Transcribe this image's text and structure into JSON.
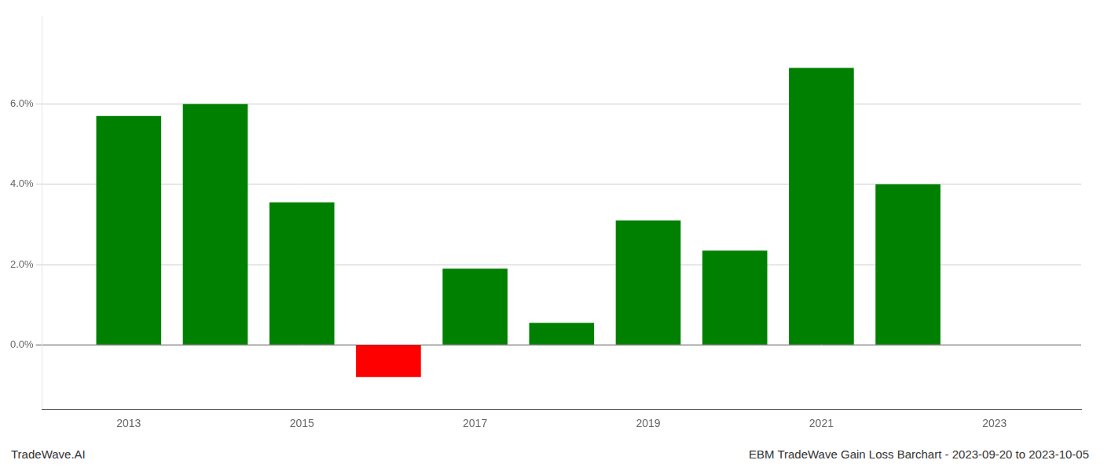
{
  "chart_data": {
    "type": "bar",
    "x": [
      2013,
      2014,
      2015,
      2016,
      2017,
      2018,
      2019,
      2020,
      2021,
      2022
    ],
    "values": [
      0.057,
      0.06,
      0.0355,
      -0.008,
      0.019,
      0.0055,
      0.031,
      0.0235,
      0.069,
      0.04
    ],
    "colors": [
      "#008000",
      "#008000",
      "#008000",
      "#ff0000",
      "#008000",
      "#008000",
      "#008000",
      "#008000",
      "#008000",
      "#008000"
    ],
    "xlim": [
      2012,
      2024
    ],
    "xticks": [
      2013,
      2015,
      2017,
      2019,
      2021,
      2023
    ],
    "ylim": [
      -0.016,
      0.082
    ],
    "yticks": [
      {
        "value": 0.0,
        "label": "0.0%"
      },
      {
        "value": 0.02,
        "label": "2.0%"
      },
      {
        "value": 0.04,
        "label": "4.0%"
      },
      {
        "value": 0.06,
        "label": "6.0%"
      }
    ],
    "grid": true,
    "annotations": [
      "TradeWave.AI",
      "EBM TradeWave Gain Loss Barchart - 2023-09-20 to 2023-10-05"
    ]
  }
}
